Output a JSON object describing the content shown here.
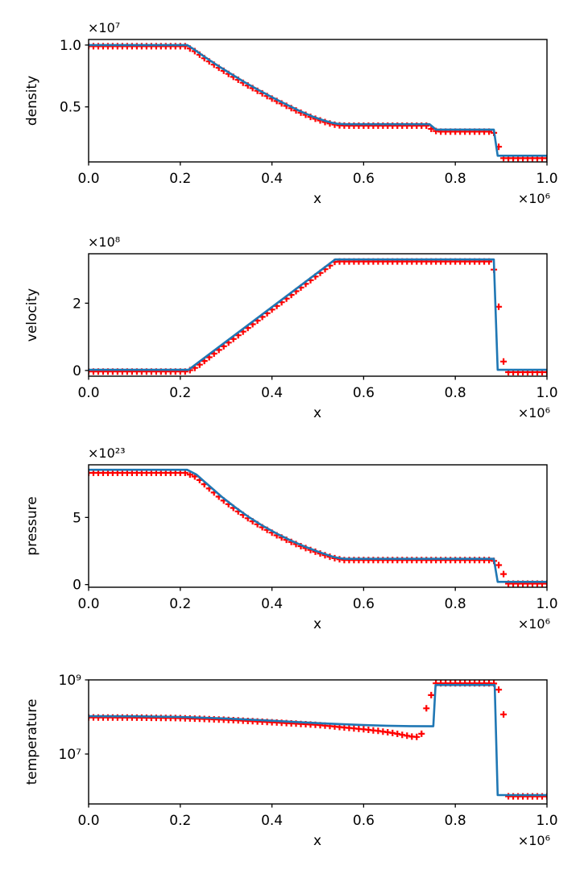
{
  "figure": {
    "background": "#ffffff",
    "spine_color": "#000000",
    "text_color": "#000000"
  },
  "chart_data": [
    {
      "type": "line",
      "title": "",
      "xlabel": "x",
      "ylabel": "density",
      "yscale": "linear",
      "grid": false,
      "legend": false,
      "x_offset_label": "×10⁶",
      "y_offset_label": "×10⁷",
      "xlim": [
        0.0,
        1.0
      ],
      "ylim": [
        0.055,
        1.045
      ],
      "xticks": {
        "values": [
          0.0,
          0.2,
          0.4,
          0.6,
          0.8,
          1.0
        ],
        "labels": [
          "0.0",
          "0.2",
          "0.4",
          "0.6",
          "0.8",
          "1.0"
        ]
      },
      "yticks": {
        "values": [
          0.5,
          1.0
        ],
        "labels": [
          "0.5",
          "1.0"
        ]
      },
      "series": [
        {
          "name": "numerical solution markers",
          "style": "plus-markers",
          "color": "#ff0000",
          "marker_count": 96,
          "anchors": [
            [
              0,
              0.99
            ],
            [
              0.212,
              0.99
            ],
            [
              0.232,
              0.95
            ],
            [
              0.25,
              0.9
            ],
            [
              0.28,
              0.826
            ],
            [
              0.31,
              0.756
            ],
            [
              0.34,
              0.688
            ],
            [
              0.37,
              0.627
            ],
            [
              0.4,
              0.567
            ],
            [
              0.43,
              0.511
            ],
            [
              0.46,
              0.458
            ],
            [
              0.49,
              0.41
            ],
            [
              0.515,
              0.378
            ],
            [
              0.53,
              0.362
            ],
            [
              0.543,
              0.352
            ],
            [
              0.56,
              0.348
            ],
            [
              0.7368,
              0.348
            ],
            [
              0.7474,
              0.322
            ],
            [
              0.7579,
              0.305
            ],
            [
              0.7684,
              0.3
            ],
            [
              0.8737,
              0.3
            ],
            [
              0.8842,
              0.29
            ],
            [
              0.8947,
              0.178
            ],
            [
              0.9053,
              0.085
            ],
            [
              1.0,
              0.085
            ]
          ]
        },
        {
          "name": "exact solution line",
          "style": "line",
          "color": "#1f77b4",
          "points": [
            [
              0,
              1.0
            ],
            [
              0.215,
              1.0
            ],
            [
              0.23,
              0.965
            ],
            [
              0.25,
              0.912
            ],
            [
              0.28,
              0.838
            ],
            [
              0.31,
              0.768
            ],
            [
              0.34,
              0.7
            ],
            [
              0.37,
              0.638
            ],
            [
              0.4,
              0.578
            ],
            [
              0.43,
              0.522
            ],
            [
              0.46,
              0.468
            ],
            [
              0.49,
              0.42
            ],
            [
              0.515,
              0.388
            ],
            [
              0.53,
              0.372
            ],
            [
              0.543,
              0.363
            ],
            [
              0.56,
              0.36
            ],
            [
              0.744,
              0.36
            ],
            [
              0.758,
              0.316
            ],
            [
              0.884,
              0.316
            ],
            [
              0.8925,
              0.105
            ],
            [
              1.0,
              0.105
            ]
          ]
        }
      ]
    },
    {
      "type": "line",
      "title": "",
      "xlabel": "x",
      "ylabel": "velocity",
      "yscale": "linear",
      "grid": false,
      "legend": false,
      "x_offset_label": "×10⁶",
      "y_offset_label": "×10⁸",
      "xlim": [
        0.0,
        1.0
      ],
      "ylim": [
        -0.17,
        3.47
      ],
      "xticks": {
        "values": [
          0.0,
          0.2,
          0.4,
          0.6,
          0.8,
          1.0
        ],
        "labels": [
          "0.0",
          "0.2",
          "0.4",
          "0.6",
          "0.8",
          "1.0"
        ]
      },
      "yticks": {
        "values": [
          0,
          2
        ],
        "labels": [
          "0",
          "2"
        ]
      },
      "series": [
        {
          "name": "numerical solution markers",
          "style": "plus-markers",
          "color": "#ff0000",
          "marker_count": 96,
          "anchors": [
            [
              0,
              -0.03
            ],
            [
              0.215,
              -0.03
            ],
            [
              0.235,
              0.1
            ],
            [
              0.538,
              3.24
            ],
            [
              0.8737,
              3.24
            ],
            [
              0.8842,
              3.0
            ],
            [
              0.8947,
              1.9
            ],
            [
              0.9053,
              0.26
            ],
            [
              0.9158,
              -0.05
            ],
            [
              1.0,
              -0.05
            ]
          ]
        },
        {
          "name": "exact solution line",
          "style": "line",
          "color": "#1f77b4",
          "points": [
            [
              0,
              0.02
            ],
            [
              0.218,
              0.02
            ],
            [
              0.538,
              3.3
            ],
            [
              0.884,
              3.3
            ],
            [
              0.8925,
              0.02
            ],
            [
              1.0,
              0.02
            ]
          ]
        }
      ]
    },
    {
      "type": "line",
      "title": "",
      "xlabel": "x",
      "ylabel": "pressure",
      "yscale": "linear",
      "grid": false,
      "legend": false,
      "x_offset_label": "×10⁶",
      "y_offset_label": "×10²³",
      "xlim": [
        0.0,
        1.0
      ],
      "ylim": [
        -0.2,
        8.92
      ],
      "xticks": {
        "values": [
          0.0,
          0.2,
          0.4,
          0.6,
          0.8,
          1.0
        ],
        "labels": [
          "0.0",
          "0.2",
          "0.4",
          "0.6",
          "0.8",
          "1.0"
        ]
      },
      "yticks": {
        "values": [
          0,
          5
        ],
        "labels": [
          "0",
          "5"
        ]
      },
      "series": [
        {
          "name": "numerical solution markers",
          "style": "plus-markers",
          "color": "#ff0000",
          "marker_count": 96,
          "anchors": [
            [
              0,
              8.32
            ],
            [
              0.212,
              8.32
            ],
            [
              0.235,
              8.0
            ],
            [
              0.26,
              7.25
            ],
            [
              0.29,
              6.38
            ],
            [
              0.32,
              5.6
            ],
            [
              0.35,
              4.88
            ],
            [
              0.38,
              4.25
            ],
            [
              0.41,
              3.68
            ],
            [
              0.44,
              3.2
            ],
            [
              0.47,
              2.76
            ],
            [
              0.5,
              2.38
            ],
            [
              0.52,
              2.14
            ],
            [
              0.535,
              1.98
            ],
            [
              0.55,
              1.86
            ],
            [
              0.56,
              1.82
            ],
            [
              0.8737,
              1.82
            ],
            [
              0.8842,
              1.76
            ],
            [
              0.8947,
              1.45
            ],
            [
              0.9053,
              0.78
            ],
            [
              0.9158,
              0.07
            ],
            [
              1.0,
              0.07
            ]
          ]
        },
        {
          "name": "exact solution line",
          "style": "line",
          "color": "#1f77b4",
          "points": [
            [
              0,
              8.55
            ],
            [
              0.215,
              8.55
            ],
            [
              0.235,
              8.2
            ],
            [
              0.26,
              7.45
            ],
            [
              0.29,
              6.55
            ],
            [
              0.32,
              5.75
            ],
            [
              0.35,
              5.02
            ],
            [
              0.38,
              4.37
            ],
            [
              0.41,
              3.8
            ],
            [
              0.44,
              3.3
            ],
            [
              0.47,
              2.85
            ],
            [
              0.5,
              2.46
            ],
            [
              0.52,
              2.22
            ],
            [
              0.535,
              2.05
            ],
            [
              0.55,
              1.95
            ],
            [
              0.56,
              1.92
            ],
            [
              0.884,
              1.92
            ],
            [
              0.8925,
              0.2
            ],
            [
              1.0,
              0.2
            ]
          ]
        }
      ]
    },
    {
      "type": "line",
      "title": "",
      "xlabel": "x",
      "ylabel": "temperature",
      "yscale": "log",
      "grid": false,
      "legend": false,
      "x_offset_label": "×10⁶",
      "y_offset_label": "",
      "xlim": [
        0.0,
        1.0
      ],
      "ylim": [
        450000,
        1000000000
      ],
      "xticks": {
        "values": [
          0.0,
          0.2,
          0.4,
          0.6,
          0.8,
          1.0
        ],
        "labels": [
          "0.0",
          "0.2",
          "0.4",
          "0.6",
          "0.8",
          "1.0"
        ]
      },
      "yticks": {
        "values": [
          1000000000,
          10000000
        ],
        "labels": [
          "10⁹",
          "10⁷"
        ]
      },
      "series": [
        {
          "name": "numerical solution markers",
          "style": "plus-markers",
          "color": "#ff0000",
          "marker_count": 96,
          "anchors": [
            [
              0,
              97000000
            ],
            [
              0.1,
              96000000
            ],
            [
              0.2,
              93000000
            ],
            [
              0.3,
              84000000
            ],
            [
              0.4,
              72000000
            ],
            [
              0.5,
              61000000
            ],
            [
              0.5579,
              52000000
            ],
            [
              0.6,
              46500000
            ],
            [
              0.6316,
              42000000
            ],
            [
              0.6632,
              37000000
            ],
            [
              0.6842,
              33000000
            ],
            [
              0.7053,
              29500000
            ],
            [
              0.7158,
              29000000
            ],
            [
              0.7263,
              35000000
            ],
            [
              0.7368,
              170000000
            ],
            [
              0.7474,
              390000000
            ],
            [
              0.7579,
              810000000
            ],
            [
              0.8737,
              810000000
            ],
            [
              0.8842,
              800000000
            ],
            [
              0.8947,
              550000000
            ],
            [
              0.9053,
              116000000
            ],
            [
              0.9158,
              720000
            ],
            [
              1.0,
              720000
            ]
          ]
        },
        {
          "name": "exact solution line",
          "style": "line",
          "color": "#1f77b4",
          "points": [
            [
              0,
              105000000
            ],
            [
              0.1,
              104000000
            ],
            [
              0.2,
              100000000
            ],
            [
              0.3,
              91000000
            ],
            [
              0.4,
              79000000
            ],
            [
              0.5,
              68000000
            ],
            [
              0.55,
              64000000
            ],
            [
              0.6,
              60500000
            ],
            [
              0.65,
              58000000
            ],
            [
              0.7,
              56500000
            ],
            [
              0.752,
              56000000
            ],
            [
              0.757,
              730000000
            ],
            [
              0.886,
              730000000
            ],
            [
              0.8925,
              780000
            ],
            [
              1.0,
              780000
            ]
          ]
        }
      ]
    }
  ]
}
